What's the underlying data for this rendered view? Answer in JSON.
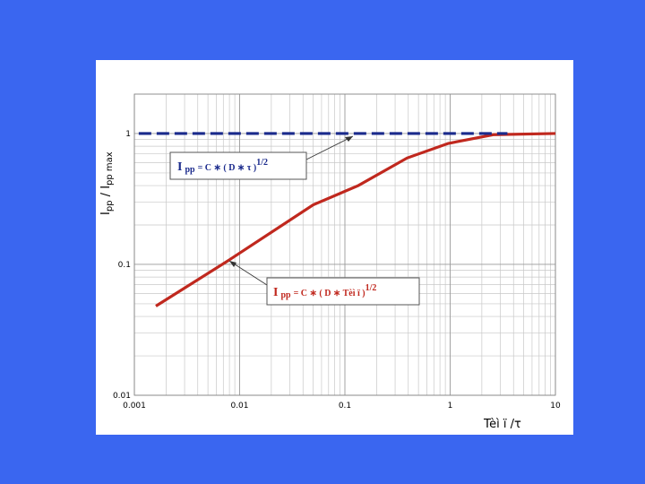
{
  "chart_data": {
    "type": "line",
    "xlog": true,
    "ylog": true,
    "grid": true,
    "minor_grid": true,
    "xlim": [
      0.001,
      10
    ],
    "ylim": [
      0.01,
      2
    ],
    "xticks": [
      0.001,
      0.01,
      0.1,
      1,
      10
    ],
    "yticks": [
      0.01,
      0.1,
      1
    ],
    "xlabel": "Tèì ï /τ",
    "ylabel": [
      "I",
      "pp",
      " / I",
      "pp max"
    ],
    "series": [
      {
        "color": "#c0281e",
        "dashed": false,
        "x": [
          0.0016,
          0.0078,
          0.05,
          0.134,
          0.39,
          0.96,
          2.6,
          10
        ],
        "values": [
          0.048,
          0.107,
          0.285,
          0.4,
          0.65,
          0.84,
          0.98,
          1
        ]
      },
      {
        "color": "#1a2a8c",
        "dashed": true,
        "x": [
          0.0011,
          3.5
        ],
        "values": [
          1,
          1
        ]
      }
    ],
    "annotations": [
      [
        "I",
        "pp",
        "= C ∗ ( D ∗ τ )",
        "1/2"
      ],
      [
        "I",
        "pp",
        "= C ∗ ( D ∗ Tèì ï )",
        "1/2"
      ]
    ]
  }
}
